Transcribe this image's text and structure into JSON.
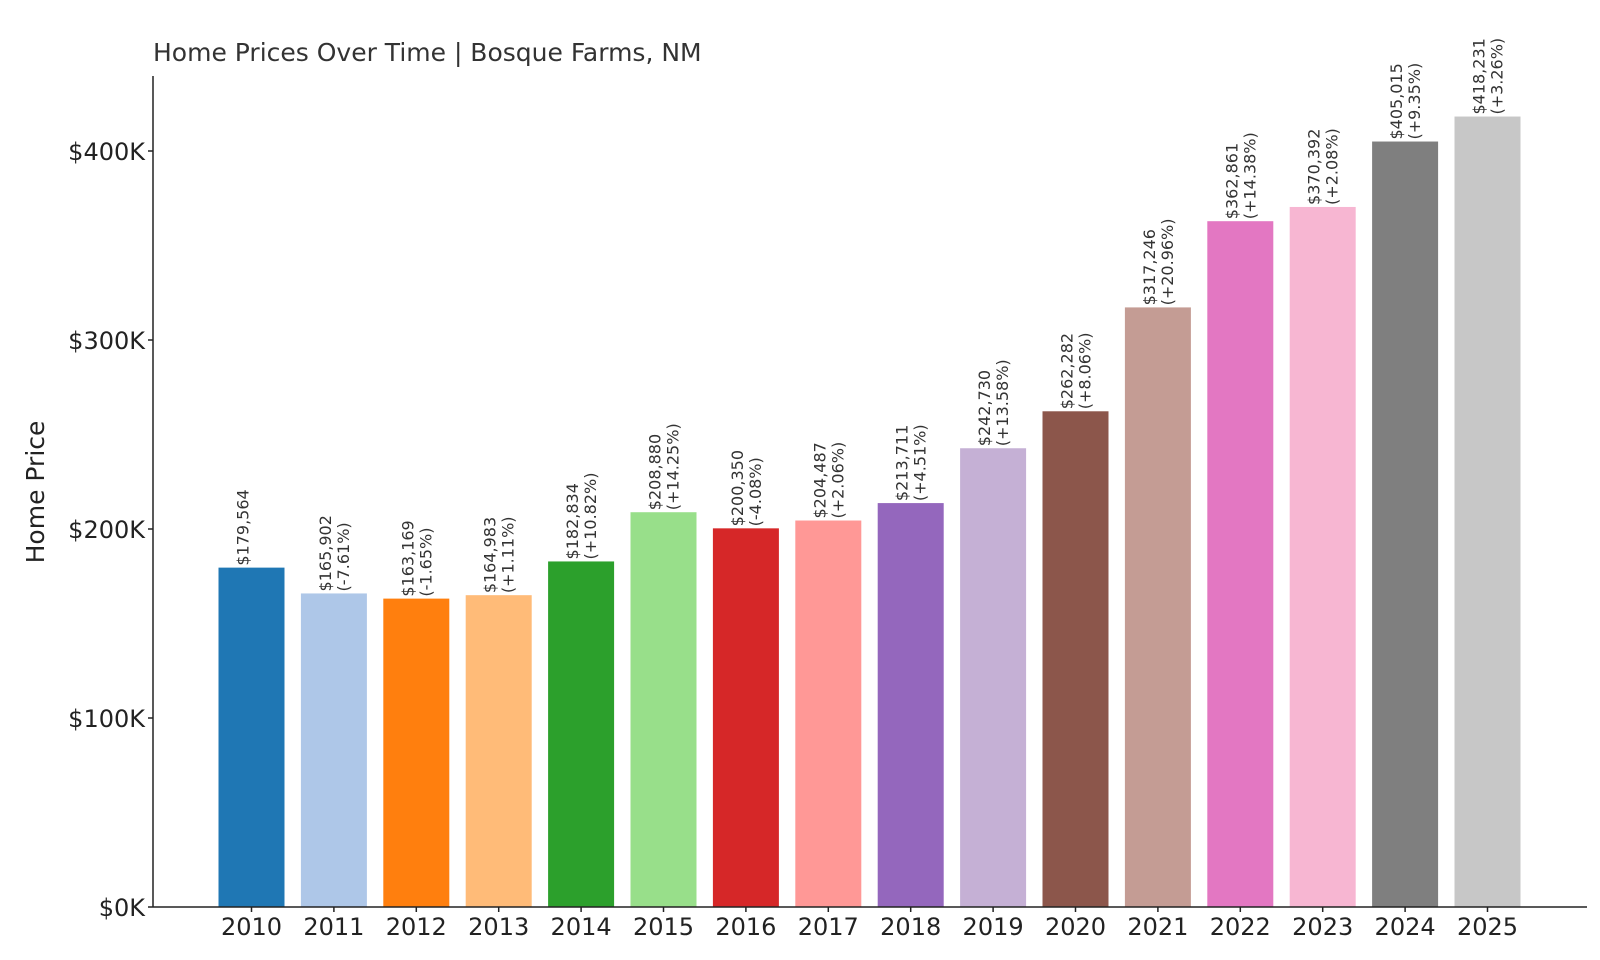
{
  "chart_data": {
    "type": "bar",
    "title": "Home Prices Over Time | Bosque Farms, NM",
    "xlabel": "",
    "ylabel": "Home Price",
    "ylim": [
      0,
      440000
    ],
    "yticks": [
      0,
      100000,
      200000,
      300000,
      400000
    ],
    "ytick_labels": [
      "$0K",
      "$100K",
      "$200K",
      "$300K",
      "$400K"
    ],
    "grid": false,
    "categories": [
      "2010",
      "2011",
      "2012",
      "2013",
      "2014",
      "2015",
      "2016",
      "2017",
      "2018",
      "2019",
      "2020",
      "2021",
      "2022",
      "2023",
      "2024",
      "2025"
    ],
    "values": [
      179564,
      165902,
      163169,
      164983,
      182834,
      208880,
      200350,
      204487,
      213711,
      242730,
      262282,
      317246,
      362861,
      370392,
      405015,
      418231
    ],
    "value_labels": [
      "$179,564",
      "$165,902",
      "$163,169",
      "$164,983",
      "$182,834",
      "$208,880",
      "$200,350",
      "$204,487",
      "$213,711",
      "$242,730",
      "$262,282",
      "$317,246",
      "$362,861",
      "$370,392",
      "$405,015",
      "$418,231"
    ],
    "change_labels": [
      "",
      "(-7.61%)",
      "(-1.65%)",
      "(+1.11%)",
      "(+10.82%)",
      "(+14.25%)",
      "(-4.08%)",
      "(+2.06%)",
      "(+4.51%)",
      "(+13.58%)",
      "(+8.06%)",
      "(+20.96%)",
      "(+14.38%)",
      "(+2.08%)",
      "(+9.35%)",
      "(+3.26%)"
    ],
    "colors": [
      "#1f77b4",
      "#aec7e8",
      "#ff7f0e",
      "#ffbb78",
      "#2ca02c",
      "#98df8a",
      "#d62728",
      "#ff9896",
      "#9467bd",
      "#c5b0d5",
      "#8c564b",
      "#c49c94",
      "#e377c2",
      "#f7b6d2",
      "#7f7f7f",
      "#c7c7c7"
    ]
  }
}
